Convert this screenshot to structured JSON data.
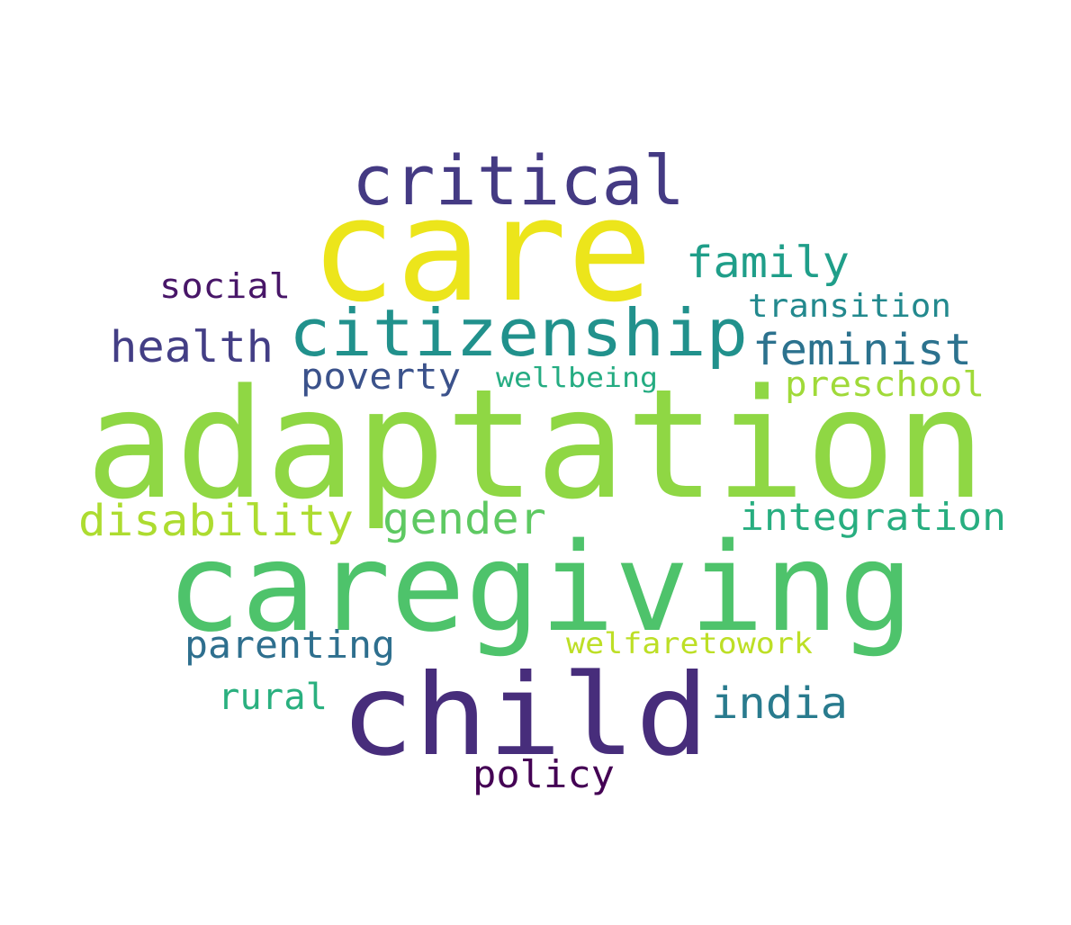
{
  "words": [
    {
      "text": "care",
      "color": "#ece51b"
    },
    {
      "text": "adaptation",
      "color": "#8fd744"
    },
    {
      "text": "caregiving",
      "color": "#4ec36b"
    },
    {
      "text": "child",
      "color": "#472d7b"
    },
    {
      "text": "critical",
      "color": "#443a83"
    },
    {
      "text": "citizenship",
      "color": "#21918c"
    },
    {
      "text": "family",
      "color": "#1f9e89"
    },
    {
      "text": "feminist",
      "color": "#2c728e"
    },
    {
      "text": "health",
      "color": "#433e85"
    },
    {
      "text": "social",
      "color": "#481668"
    },
    {
      "text": "transition",
      "color": "#23898e"
    },
    {
      "text": "poverty",
      "color": "#3b528b"
    },
    {
      "text": "wellbeing",
      "color": "#25ac82"
    },
    {
      "text": "preschool",
      "color": "#a0da39"
    },
    {
      "text": "disability",
      "color": "#addc30"
    },
    {
      "text": "gender",
      "color": "#5ec962"
    },
    {
      "text": "integration",
      "color": "#28ae80"
    },
    {
      "text": "parenting",
      "color": "#2e6f8e"
    },
    {
      "text": "welfaretowork",
      "color": "#bddf26"
    },
    {
      "text": "rural",
      "color": "#2ab07f"
    },
    {
      "text": "india",
      "color": "#297b8e"
    },
    {
      "text": "policy",
      "color": "#440154"
    }
  ]
}
